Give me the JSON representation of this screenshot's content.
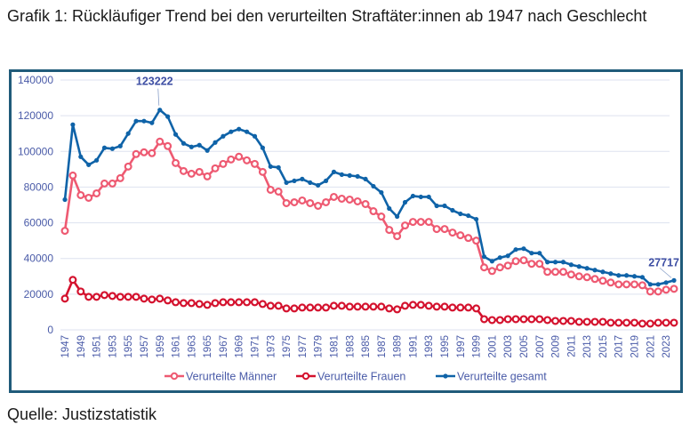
{
  "title": "Grafik 1: Rückläufiger Trend bei den verurteilten Straftäter:innen ab 1947 nach Geschlecht",
  "source": "Quelle: Justizstatistik",
  "chart_data": {
    "type": "line",
    "title": "Grafik 1: Rückläufiger Trend bei den verurteilten Straftäter:innen ab 1947 nach Geschlecht",
    "xlabel": "",
    "ylabel": "",
    "ylim": [
      0,
      140000
    ],
    "yticks": [
      0,
      20000,
      40000,
      60000,
      80000,
      100000,
      120000,
      140000
    ],
    "ytick_labels": [
      "0",
      "20000",
      "40000",
      "60000",
      "80000",
      "100000",
      "120000",
      "140000"
    ],
    "xtick_labels": [
      "1947",
      "1949",
      "1951",
      "1953",
      "1955",
      "1957",
      "1959",
      "1961",
      "1963",
      "1965",
      "1967",
      "1969",
      "1971",
      "1973",
      "1975",
      "1977",
      "1979",
      "1981",
      "1983",
      "1985",
      "1987",
      "1989",
      "1991",
      "1993",
      "1995",
      "1997",
      "1999",
      "2001",
      "2003",
      "2005",
      "2007",
      "2009",
      "2011",
      "2013",
      "2015",
      "2017",
      "2019",
      "2021",
      "2023"
    ],
    "grid": true,
    "legend_position": "bottom",
    "x": [
      1947,
      1948,
      1949,
      1950,
      1951,
      1952,
      1953,
      1954,
      1955,
      1956,
      1957,
      1958,
      1959,
      1960,
      1961,
      1962,
      1963,
      1964,
      1965,
      1966,
      1967,
      1968,
      1969,
      1970,
      1971,
      1972,
      1973,
      1974,
      1975,
      1976,
      1977,
      1978,
      1979,
      1980,
      1981,
      1982,
      1983,
      1984,
      1985,
      1986,
      1987,
      1988,
      1989,
      1990,
      1991,
      1992,
      1993,
      1994,
      1995,
      1996,
      1997,
      1998,
      1999,
      2000,
      2001,
      2002,
      2003,
      2004,
      2005,
      2006,
      2007,
      2008,
      2009,
      2010,
      2011,
      2012,
      2013,
      2014,
      2015,
      2016,
      2017,
      2018,
      2019,
      2020,
      2021,
      2022,
      2023,
      2024
    ],
    "series": [
      {
        "name": "Verurteilte Männer",
        "color": "#ee5a72",
        "marker": "hollow-circle",
        "values": [
          55500,
          86500,
          75500,
          74000,
          76500,
          82000,
          82000,
          85000,
          91500,
          98500,
          99500,
          99000,
          105500,
          103000,
          93500,
          89000,
          87500,
          88500,
          86000,
          90500,
          93000,
          95500,
          97000,
          95000,
          93000,
          88500,
          78500,
          77500,
          71000,
          71500,
          72500,
          71000,
          69500,
          71500,
          74500,
          73500,
          73000,
          72000,
          70500,
          66500,
          63500,
          56000,
          52500,
          58500,
          60500,
          60500,
          60500,
          56500,
          56500,
          54500,
          53000,
          51500,
          50000,
          35000,
          33000,
          35000,
          36000,
          38500,
          39000,
          37000,
          37000,
          32500,
          32500,
          32500,
          31000,
          30000,
          29500,
          28500,
          27500,
          26500,
          25500,
          25500,
          25500,
          25000,
          21500,
          21500,
          22500,
          23000
        ]
      },
      {
        "name": "Verurteilte Frauen",
        "color": "#d4122e",
        "marker": "hollow-circle",
        "values": [
          17500,
          28000,
          21500,
          18500,
          18500,
          19500,
          19000,
          18500,
          18500,
          18500,
          17500,
          17000,
          17500,
          16500,
          15500,
          15000,
          15000,
          14500,
          14000,
          15000,
          15500,
          15500,
          15500,
          15500,
          15500,
          14500,
          13500,
          13500,
          12000,
          12000,
          12500,
          12500,
          12500,
          12500,
          13500,
          13500,
          13000,
          13000,
          13000,
          13000,
          13000,
          12000,
          11500,
          13500,
          14000,
          14000,
          13500,
          13000,
          13000,
          12500,
          12500,
          12500,
          12000,
          6000,
          5500,
          5500,
          6000,
          6000,
          6000,
          6000,
          6000,
          5500,
          5000,
          5000,
          5000,
          4500,
          4500,
          4500,
          4500,
          4000,
          4000,
          4000,
          4000,
          3500,
          3500,
          4000,
          4000,
          4000
        ]
      },
      {
        "name": "Verurteilte gesamt",
        "color": "#0f63a8",
        "marker": "filled-dot",
        "values": [
          73000,
          115000,
          97000,
          92500,
          95000,
          102000,
          101500,
          103000,
          110000,
          117000,
          117000,
          116000,
          123222,
          119500,
          109500,
          104500,
          102500,
          103500,
          100500,
          105000,
          108500,
          111000,
          112500,
          111000,
          108500,
          102000,
          91500,
          91000,
          82500,
          83500,
          84500,
          82500,
          81000,
          83500,
          88500,
          87000,
          86500,
          86000,
          84500,
          80500,
          77000,
          68000,
          63500,
          71500,
          75000,
          74500,
          74500,
          69500,
          69500,
          67000,
          65000,
          64000,
          62000,
          41000,
          38500,
          40500,
          41500,
          45000,
          45500,
          43000,
          43000,
          38000,
          38000,
          38000,
          36500,
          35500,
          34500,
          33500,
          32500,
          31500,
          30500,
          30500,
          30000,
          29500,
          25500,
          25500,
          26500,
          27717
        ]
      }
    ],
    "annotations": [
      {
        "series": "Verurteilte gesamt",
        "x": 1959,
        "label": "123222"
      },
      {
        "series": "Verurteilte gesamt",
        "x": 2024,
        "label": "27717"
      }
    ]
  },
  "frame_color": "#205b7a",
  "axis_text_color": "#4a5ba8"
}
